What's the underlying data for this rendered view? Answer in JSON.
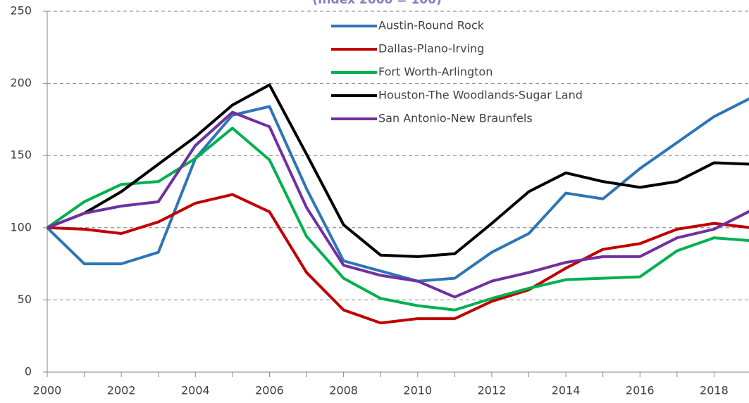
{
  "chart_data": {
    "type": "line",
    "subtitle": "(Index 2000 = 100)",
    "x": [
      2000,
      2001,
      2002,
      2003,
      2004,
      2005,
      2006,
      2007,
      2008,
      2009,
      2010,
      2011,
      2012,
      2013,
      2014,
      2015,
      2016,
      2017,
      2018,
      2019
    ],
    "xlim": [
      2000,
      2019
    ],
    "xticks": [
      2000,
      2002,
      2004,
      2006,
      2008,
      2010,
      2012,
      2014,
      2016,
      2018
    ],
    "ylim": [
      0,
      250
    ],
    "yticks": [
      0,
      50,
      100,
      150,
      200,
      250
    ],
    "grid": true,
    "legend": "top-right",
    "series": [
      {
        "name": "Austin-Round Rock",
        "color": "#2e75b6",
        "values": [
          100,
          75,
          75,
          83,
          148,
          178,
          184,
          127,
          77,
          70,
          63,
          65,
          83,
          96,
          124,
          120,
          141,
          159,
          177,
          190
        ]
      },
      {
        "name": "Dallas-Plano-Irving",
        "color": "#c00000",
        "values": [
          100,
          99,
          96,
          104,
          117,
          123,
          111,
          69,
          43,
          34,
          37,
          37,
          49,
          57,
          72,
          85,
          89,
          99,
          103,
          100
        ]
      },
      {
        "name": "Fort Worth-Arlington",
        "color": "#00b050",
        "values": [
          100,
          118,
          130,
          132,
          148,
          169,
          147,
          94,
          65,
          51,
          46,
          43,
          51,
          58,
          64,
          65,
          66,
          84,
          93,
          91
        ]
      },
      {
        "name": "Houston-The Woodlands-Sugar Land",
        "color": "#000000",
        "values": [
          100,
          110,
          125,
          144,
          163,
          185,
          199,
          151,
          102,
          81,
          80,
          82,
          103,
          125,
          138,
          132,
          128,
          132,
          145,
          144
        ]
      },
      {
        "name": "San Antonio-New Braunfels",
        "color": "#7030a0",
        "values": [
          100,
          110,
          115,
          118,
          157,
          180,
          170,
          114,
          74,
          67,
          63,
          52,
          63,
          69,
          76,
          80,
          80,
          93,
          99,
          112
        ]
      }
    ]
  }
}
